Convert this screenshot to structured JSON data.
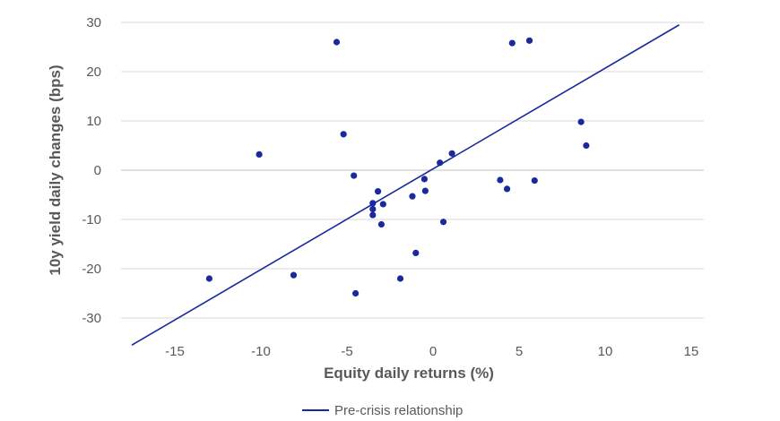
{
  "chart_data": {
    "type": "scatter",
    "xlabel": "Equity daily returns (%)",
    "ylabel": "10y yield daily changes (bps)",
    "xlim": [
      -18,
      16
    ],
    "ylim": [
      -35,
      30
    ],
    "x_ticks": [
      -15,
      -10,
      -5,
      0,
      5,
      10,
      15
    ],
    "y_ticks": [
      30,
      20,
      10,
      0,
      -10,
      -20,
      -30
    ],
    "grid": "horizontal",
    "colors": {
      "points": "#1a2a9c",
      "line": "#1a2a9c",
      "grid": "#d9d9d9",
      "axis": "#bfbfbf",
      "text": "#595959"
    },
    "series": [
      {
        "type": "scatter",
        "points": [
          [
            -13,
            -22
          ],
          [
            -10.1,
            3.2
          ],
          [
            -8.1,
            -21.3
          ],
          [
            -5.6,
            26
          ],
          [
            -5.2,
            7.3
          ],
          [
            -4.6,
            -1.1
          ],
          [
            -4.5,
            -25
          ],
          [
            -3.5,
            -6.7
          ],
          [
            -3.5,
            -7.9
          ],
          [
            -3.5,
            -9.1
          ],
          [
            -3.2,
            -4.3
          ],
          [
            -3.0,
            -11
          ],
          [
            -2.9,
            -6.9
          ],
          [
            -1.9,
            -22
          ],
          [
            -1.2,
            -5.3
          ],
          [
            -1.0,
            -16.8
          ],
          [
            -0.5,
            -1.8
          ],
          [
            -0.45,
            -4.2
          ],
          [
            0.4,
            1.5
          ],
          [
            0.6,
            -10.5
          ],
          [
            1.1,
            3.4
          ],
          [
            3.9,
            -2
          ],
          [
            4.3,
            -3.8
          ],
          [
            4.6,
            25.8
          ],
          [
            5.6,
            26.3
          ],
          [
            5.9,
            -2.1
          ],
          [
            8.6,
            9.8
          ],
          [
            8.9,
            5
          ]
        ]
      },
      {
        "type": "line",
        "name": "Pre-crisis relationship",
        "points": [
          [
            -17.5,
            -35.5
          ],
          [
            14.3,
            29.5
          ]
        ]
      }
    ]
  }
}
